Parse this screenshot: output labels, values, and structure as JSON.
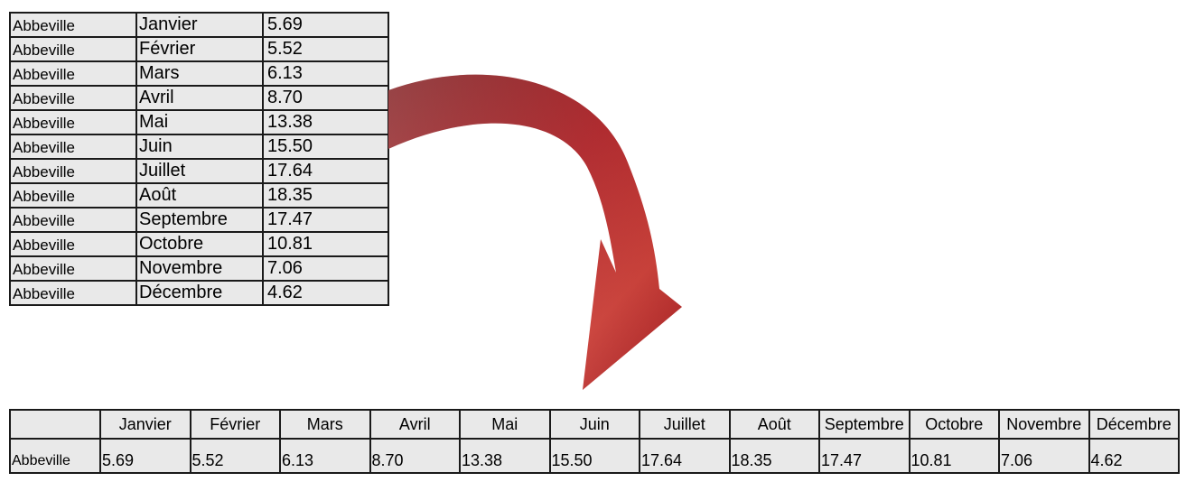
{
  "long_table": {
    "rows": [
      {
        "city": "Abbeville",
        "month": "Janvier",
        "value": "5.69"
      },
      {
        "city": "Abbeville",
        "month": "Février",
        "value": "5.52"
      },
      {
        "city": "Abbeville",
        "month": "Mars",
        "value": "6.13"
      },
      {
        "city": "Abbeville",
        "month": "Avril",
        "value": "8.70"
      },
      {
        "city": "Abbeville",
        "month": "Mai",
        "value": "13.38"
      },
      {
        "city": "Abbeville",
        "month": "Juin",
        "value": "15.50"
      },
      {
        "city": "Abbeville",
        "month": "Juillet",
        "value": "17.64"
      },
      {
        "city": "Abbeville",
        "month": "Août",
        "value": "18.35"
      },
      {
        "city": "Abbeville",
        "month": "Septembre",
        "value": "17.47"
      },
      {
        "city": "Abbeville",
        "month": "Octobre",
        "value": "10.81"
      },
      {
        "city": "Abbeville",
        "month": "Novembre",
        "value": "7.06"
      },
      {
        "city": "Abbeville",
        "month": "Décembre",
        "value": "4.62"
      }
    ]
  },
  "arrow": {
    "icon": "curved-arrow-icon",
    "color": "#c0282d"
  },
  "wide_table": {
    "corner": "",
    "headers": [
      "Janvier",
      "Février",
      "Mars",
      "Avril",
      "Mai",
      "Juin",
      "Juillet",
      "Août",
      "Septembre",
      "Octobre",
      "Novembre",
      "Décembre"
    ],
    "row_label": "Abbeville",
    "values": [
      "5.69",
      "5.52",
      "6.13",
      "8.70",
      "13.38",
      "15.50",
      "17.64",
      "18.35",
      "17.47",
      "10.81",
      "7.06",
      "4.62"
    ]
  }
}
